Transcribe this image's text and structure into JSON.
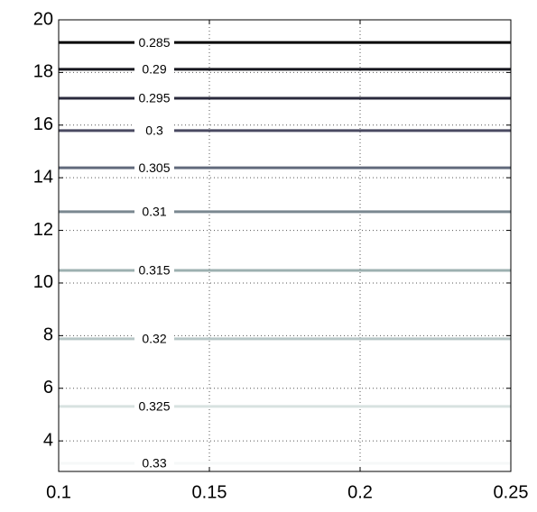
{
  "chart_data": {
    "type": "contour",
    "x": [
      0.1,
      0.25
    ],
    "series": [
      {
        "name": "0.285",
        "color": "#000000",
        "values": [
          19.14,
          19.14
        ]
      },
      {
        "name": "0.29",
        "color": "#16161e",
        "values": [
          18.12,
          18.12
        ]
      },
      {
        "name": "0.295",
        "color": "#2a2a3c",
        "values": [
          17.02,
          17.02
        ]
      },
      {
        "name": "0.3",
        "color": "#4a4a62",
        "values": [
          15.79,
          15.79
        ]
      },
      {
        "name": "0.305",
        "color": "#626a7c",
        "values": [
          14.38,
          14.38
        ]
      },
      {
        "name": "0.31",
        "color": "#7a8890",
        "values": [
          12.71,
          12.71
        ]
      },
      {
        "name": "0.315",
        "color": "#9cb0b0",
        "values": [
          10.48,
          10.48
        ]
      },
      {
        "name": "0.32",
        "color": "#b6c6c6",
        "values": [
          7.88,
          7.88
        ]
      },
      {
        "name": "0.325",
        "color": "#d8e2e0",
        "values": [
          5.31,
          5.31
        ]
      },
      {
        "name": "0.33",
        "color": "#f6f8f8",
        "values": [
          3.15,
          3.15
        ]
      }
    ],
    "xlim": [
      0.1,
      0.25
    ],
    "xticks": [
      0.1,
      0.15,
      0.2,
      0.25
    ],
    "ylim": [
      2.84,
      20
    ],
    "yticks": [
      4,
      6,
      8,
      10,
      12,
      14,
      16,
      18,
      20
    ],
    "grid": true
  }
}
